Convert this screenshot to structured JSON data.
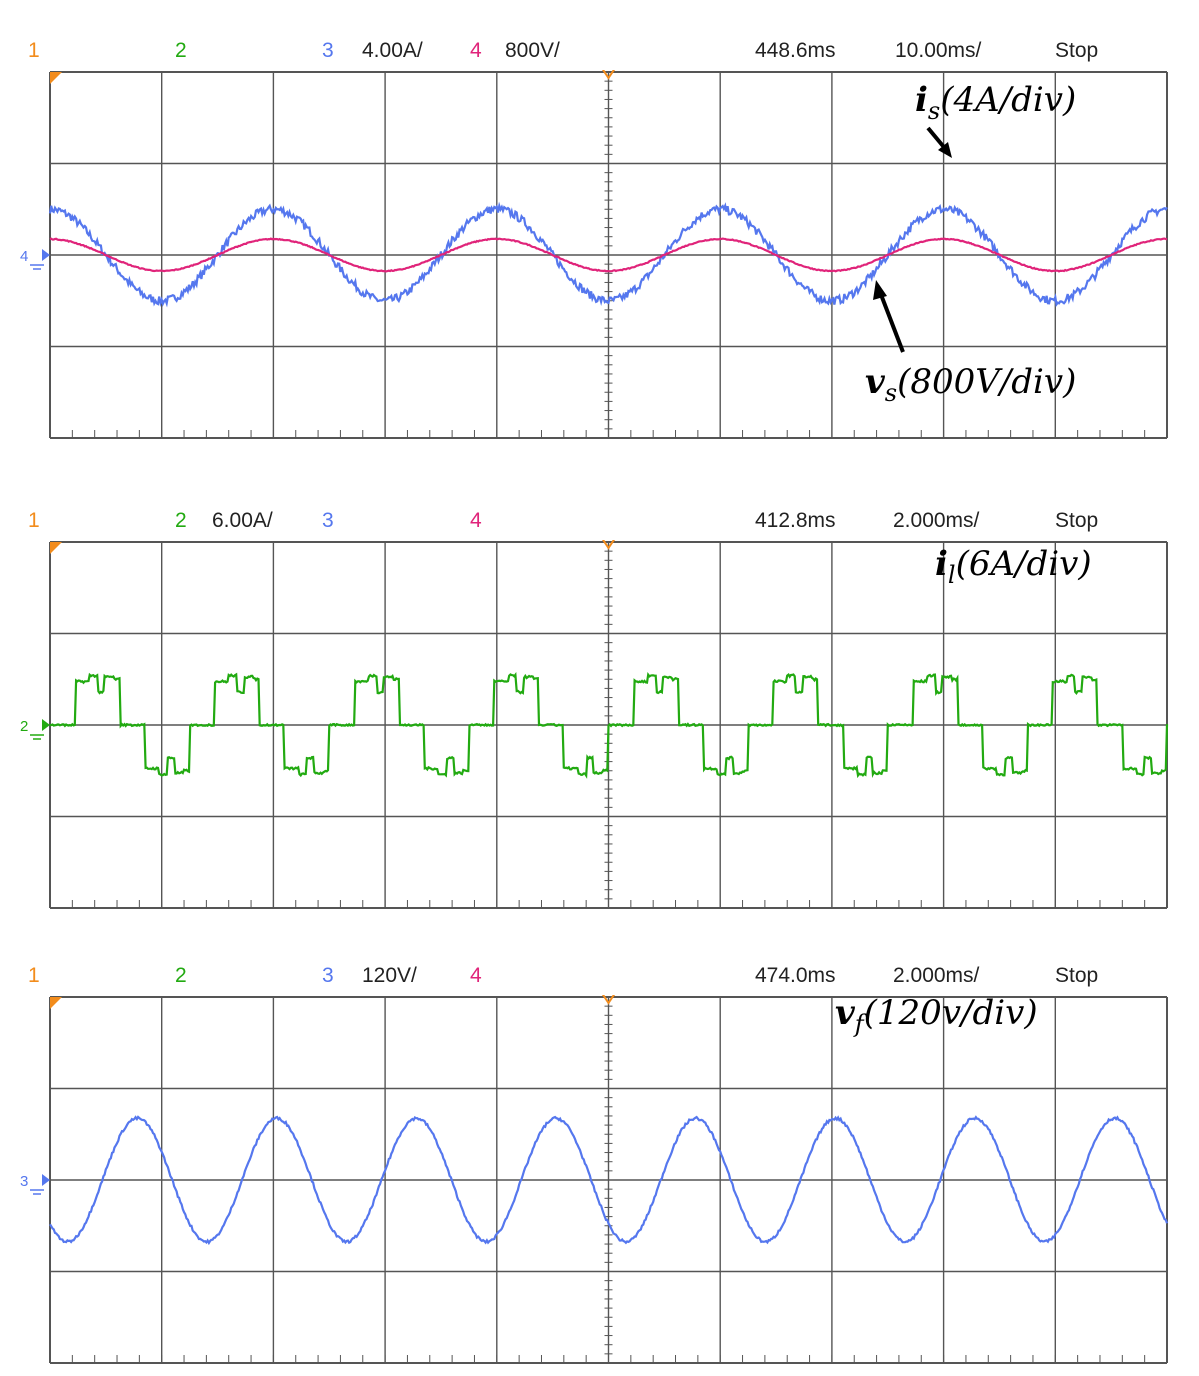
{
  "colors": {
    "ch1": "#f28c1c",
    "ch2": "#22aa11",
    "ch3": "#5577ee",
    "ch4": "#e0247a",
    "grid": "#555555"
  },
  "panels": [
    {
      "header": {
        "ch1": "1",
        "ch2": "2",
        "ch2_scale": "",
        "ch3": "3",
        "ch3_scale": "4.00A/",
        "ch4": "4",
        "ch4_scale": "800V/",
        "delay": "448.6ms",
        "timebase": "10.00ms/",
        "status": "Stop"
      },
      "labels": [
        {
          "sym": "i",
          "sub": "s",
          "scale": "(4A/div)"
        },
        {
          "sym": "v",
          "sub": "s",
          "scale": "(800V/div)"
        }
      ],
      "marker": "4",
      "chart_data": {
        "type": "line",
        "x_unit": "div",
        "xlim": [
          0,
          10
        ],
        "ylim": [
          -4,
          4
        ],
        "series": [
          {
            "name": "i_s",
            "channel": 3,
            "scale": "4A/div",
            "amplitude_div": 1.0,
            "period_div": 2.0,
            "phase_deg": 90,
            "offset_div": 0,
            "ripple_div": 0.18
          },
          {
            "name": "v_s",
            "channel": 4,
            "scale": "800V/div",
            "amplitude_div": 0.35,
            "period_div": 2.0,
            "phase_deg": 90,
            "offset_div": 0,
            "ripple_div": 0.02
          }
        ]
      }
    },
    {
      "header": {
        "ch1": "1",
        "ch2": "2",
        "ch2_scale": "6.00A/",
        "ch3": "3",
        "ch3_scale": "",
        "ch4": "4",
        "ch4_scale": "",
        "delay": "412.8ms",
        "timebase": "2.000ms/",
        "status": "Stop"
      },
      "labels": [
        {
          "sym": "i",
          "sub": "l",
          "scale": "(6A/div)"
        }
      ],
      "marker": "2",
      "chart_data": {
        "type": "line",
        "x_unit": "div",
        "xlim": [
          0,
          10
        ],
        "ylim": [
          -4,
          4
        ],
        "series": [
          {
            "name": "i_l",
            "channel": 2,
            "scale": "6A/div",
            "waveform": "stepped",
            "period_div": 1.25,
            "levels_div": [
              0,
              1,
              1.08,
              0.75,
              1.08,
              1
            ],
            "offset_div": 0
          }
        ]
      }
    },
    {
      "header": {
        "ch1": "1",
        "ch2": "2",
        "ch2_scale": "",
        "ch3": "3",
        "ch3_scale": "120V/",
        "ch4": "4",
        "ch4_scale": "",
        "delay": "474.0ms",
        "timebase": "2.000ms/",
        "status": "Stop"
      },
      "labels": [
        {
          "sym": "v",
          "sub": "f",
          "scale": "(120v/div)"
        }
      ],
      "marker": "3",
      "chart_data": {
        "type": "line",
        "x_unit": "div",
        "xlim": [
          0,
          10
        ],
        "ylim": [
          -4,
          4
        ],
        "series": [
          {
            "name": "v_f",
            "channel": 3,
            "scale": "120V/div",
            "amplitude_div": 1.35,
            "period_div": 1.25,
            "phase_deg": -135,
            "offset_div": 0,
            "ripple_div": 0.06
          }
        ]
      }
    }
  ]
}
